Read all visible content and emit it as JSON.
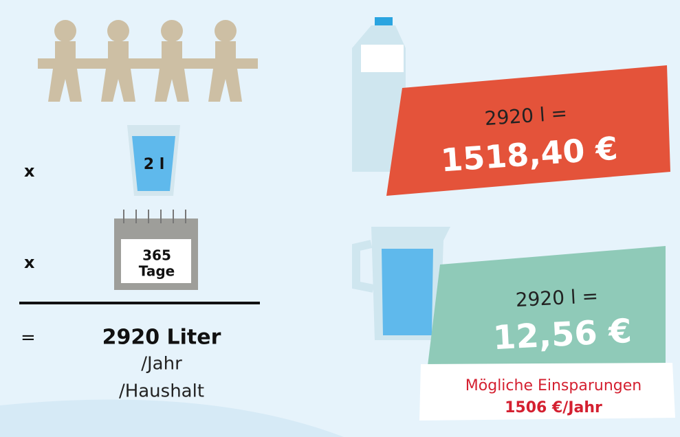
{
  "left": {
    "glass_multiplier": "x",
    "glass_label": "2 l",
    "calendar_multiplier": "x",
    "calendar_number": "365",
    "calendar_unit": "Tage",
    "equals": "=",
    "result": "2920 Liter",
    "per_year": "/Jahr",
    "per_household": "/Haushalt"
  },
  "bottled": {
    "volume": "2920 l =",
    "cost": "1518,40 €"
  },
  "tap": {
    "volume": "2920 l =",
    "cost": "12,56 €"
  },
  "savings": {
    "label": "Mögliche Einsparungen",
    "value": "1506 €/Jahr"
  }
}
